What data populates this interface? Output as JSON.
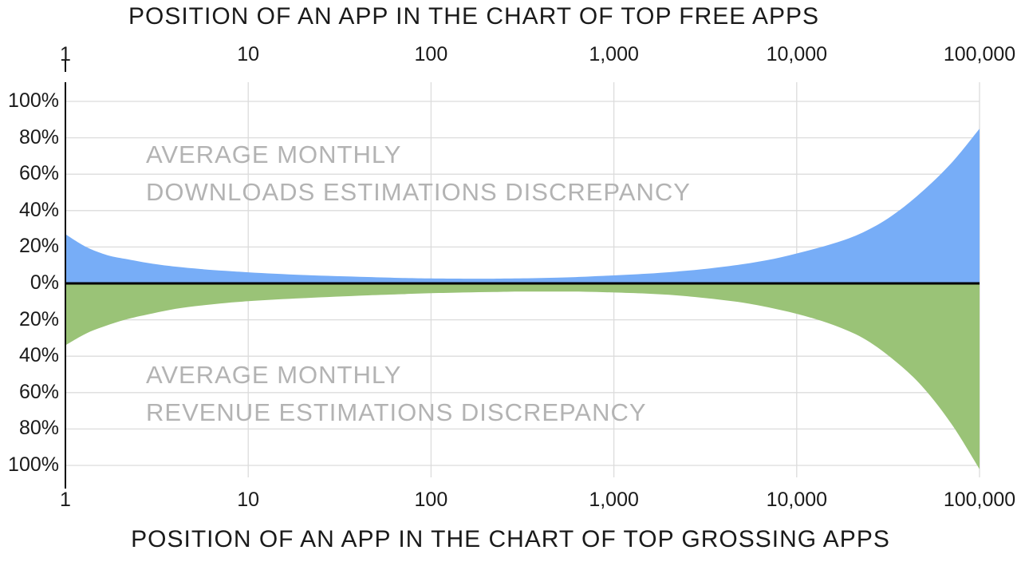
{
  "chart_data": {
    "type": "area",
    "title_top": "POSITION OF AN APP IN THE CHART OF TOP FREE APPS",
    "title_bottom": "POSITION OF AN APP IN THE CHART OF TOP GROSSING APPS",
    "x_scale": "log",
    "x_min": 1,
    "x_max": 100000,
    "x_tick_labels": [
      "1",
      "10",
      "100",
      "1,000",
      "10,000",
      "100,000"
    ],
    "x_tick_values": [
      1,
      10,
      100,
      1000,
      10000,
      100000
    ],
    "y_tick_labels_top_to_bottom": [
      "100%",
      "80%",
      "60%",
      "40%",
      "20%",
      "0%",
      "20%",
      "40%",
      "60%",
      "80%",
      "100%"
    ],
    "y_unit": "percent discrepancy",
    "ylim_pct": [
      -100,
      100
    ],
    "grid": true,
    "series": [
      {
        "name": "Average monthly downloads estimations discrepancy",
        "side": "above-zero",
        "color": "#77adf7",
        "x": [
          1,
          1.3,
          1.7,
          2.2,
          3,
          4,
          5.5,
          7.5,
          10,
          14,
          20,
          30,
          45,
          70,
          100,
          150,
          220,
          320,
          500,
          700,
          1000,
          1500,
          2200,
          3200,
          5000,
          7500,
          11000,
          16000,
          23000,
          33000,
          48000,
          70000,
          100000
        ],
        "values_pct": [
          27,
          20,
          15.5,
          13.2,
          10.8,
          9.2,
          7.9,
          6.9,
          6.1,
          5.3,
          4.6,
          4.0,
          3.5,
          3.0,
          2.7,
          2.6,
          2.6,
          2.8,
          3.2,
          3.7,
          4.4,
          5.3,
          6.5,
          8.0,
          10.5,
          13.5,
          17.5,
          22,
          28,
          37,
          50,
          66,
          85
        ]
      },
      {
        "name": "Average monthly revenue estimations discrepancy",
        "side": "below-zero",
        "color": "#9ac377",
        "x": [
          1,
          1.3,
          1.7,
          2.2,
          3,
          4,
          5.5,
          7.5,
          10,
          14,
          20,
          30,
          45,
          70,
          100,
          150,
          220,
          320,
          500,
          700,
          1000,
          1500,
          2200,
          3200,
          5000,
          7500,
          11000,
          16000,
          23000,
          33000,
          48000,
          70000,
          100000
        ],
        "values_pct": [
          34,
          27.5,
          23,
          19.5,
          16.5,
          14,
          12.2,
          10.8,
          9.8,
          8.9,
          8.1,
          7.3,
          6.6,
          5.9,
          5.4,
          5.0,
          4.7,
          4.5,
          4.5,
          4.6,
          5.0,
          5.6,
          6.6,
          8.1,
          10.5,
          13.8,
          17.8,
          23,
          30,
          41,
          56,
          77,
          102
        ]
      }
    ],
    "annotations": {
      "downloads": {
        "line1": "AVERAGE MONTHLY",
        "line2": "DOWNLOADS ESTIMATIONS DISCREPANCY"
      },
      "revenue": {
        "line1": "AVERAGE MONTHLY",
        "line2": "REVENUE ESTIMATIONS DISCREPANCY"
      }
    },
    "colors": {
      "downloads_area": "#77adf7",
      "revenue_area": "#9ac377",
      "gridline": "#dcdcdc",
      "zero_line": "#000000",
      "axis_line": "#000000",
      "watermark_text": "#b3b3b3",
      "label_text": "#1a1a1a"
    },
    "legend": "none"
  }
}
